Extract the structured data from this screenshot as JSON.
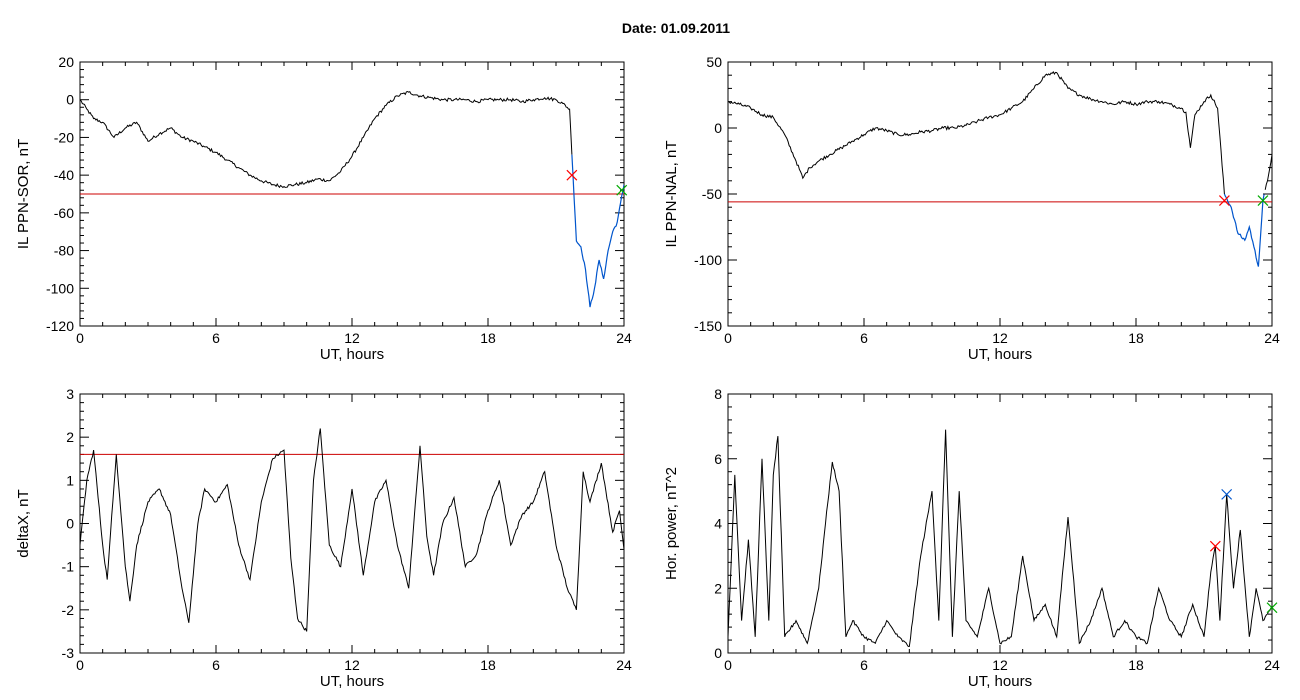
{
  "date_label": "Date:  01.09.2011",
  "chart_data": [
    {
      "type": "line",
      "xlabel": "UT, hours",
      "ylabel": "IL PPN-SOR, nT",
      "xlim": [
        0,
        24
      ],
      "ylim": [
        -120,
        20
      ],
      "xticks": [
        0,
        6,
        12,
        18,
        24
      ],
      "yticks": [
        -120,
        -100,
        -80,
        -60,
        -40,
        -20,
        0,
        20
      ],
      "threshold": -50,
      "colors": {
        "line": "#000000",
        "highlight": "#0055cc",
        "threshold": "#cc0000",
        "start_marker": "#ff0000",
        "end_marker": "#00aa00"
      },
      "highlight_range": [
        21.7,
        24
      ],
      "markers": [
        {
          "x": 21.7,
          "y": -40,
          "color": "red"
        },
        {
          "x": 23.9,
          "y": -48,
          "color": "green"
        }
      ],
      "series": [
        {
          "x": [
            0,
            0.3,
            0.6,
            1.0,
            1.5,
            2.0,
            2.5,
            3.0,
            3.5,
            4.0,
            4.5,
            5.0,
            5.5,
            6.0,
            6.5,
            7.0,
            7.5,
            8.0,
            8.5,
            9.0,
            9.5,
            10.0,
            10.5,
            11.0,
            11.5,
            12.0,
            12.5,
            13.0,
            13.5,
            14.0,
            14.5,
            15.0,
            15.5,
            16.0,
            16.5,
            17.0,
            17.5,
            18.0,
            18.5,
            19.0,
            19.5,
            20.0,
            20.5,
            21.0,
            21.3,
            21.6,
            21.75,
            21.9,
            22.1,
            22.3,
            22.5,
            22.7,
            22.9,
            23.1,
            23.3,
            23.5,
            23.7,
            24.0
          ],
          "y": [
            0,
            -5,
            -10,
            -12,
            -20,
            -15,
            -12,
            -22,
            -18,
            -15,
            -20,
            -22,
            -25,
            -28,
            -32,
            -36,
            -40,
            -43,
            -45,
            -46,
            -45,
            -44,
            -42,
            -43,
            -38,
            -30,
            -20,
            -10,
            -3,
            2,
            4,
            2,
            1,
            0,
            0,
            0,
            -1,
            0,
            0,
            0,
            -1,
            0,
            1,
            0,
            -2,
            -5,
            -40,
            -75,
            -78,
            -90,
            -110,
            -100,
            -85,
            -95,
            -80,
            -70,
            -65,
            -45
          ]
        }
      ]
    },
    {
      "type": "line",
      "xlabel": "UT, hours",
      "ylabel": "IL PPN-NAL, nT",
      "xlim": [
        0,
        24
      ],
      "ylim": [
        -150,
        50
      ],
      "xticks": [
        0,
        6,
        12,
        18,
        24
      ],
      "yticks": [
        -150,
        -100,
        -50,
        0,
        50
      ],
      "threshold": -56,
      "colors": {
        "line": "#000000",
        "highlight": "#0055cc",
        "threshold": "#cc0000",
        "start_marker": "#ff0000",
        "end_marker": "#00aa00"
      },
      "highlight_range": [
        21.9,
        23.7
      ],
      "markers": [
        {
          "x": 21.9,
          "y": -55,
          "color": "red"
        },
        {
          "x": 23.6,
          "y": -55,
          "color": "green"
        }
      ],
      "series": [
        {
          "x": [
            0,
            0.5,
            1.0,
            1.5,
            2.0,
            2.5,
            3.0,
            3.3,
            3.6,
            4.0,
            4.5,
            5.0,
            5.5,
            6.0,
            6.5,
            7.0,
            7.5,
            8.0,
            8.5,
            9.0,
            9.5,
            10.0,
            10.5,
            11.0,
            11.5,
            12.0,
            12.5,
            13.0,
            13.5,
            14.0,
            14.5,
            15.0,
            15.5,
            16.0,
            16.5,
            17.0,
            17.5,
            18.0,
            18.5,
            19.0,
            19.5,
            20.0,
            20.2,
            20.4,
            20.6,
            21.0,
            21.3,
            21.6,
            21.9,
            22.2,
            22.5,
            22.8,
            23.0,
            23.2,
            23.4,
            23.6,
            23.8,
            24.0
          ],
          "y": [
            20,
            18,
            15,
            10,
            8,
            -5,
            -25,
            -38,
            -30,
            -25,
            -20,
            -15,
            -10,
            -5,
            0,
            -2,
            -5,
            -5,
            -3,
            -2,
            0,
            0,
            2,
            5,
            8,
            10,
            15,
            20,
            30,
            40,
            42,
            30,
            25,
            22,
            20,
            18,
            20,
            18,
            20,
            20,
            18,
            15,
            12,
            -15,
            10,
            20,
            25,
            15,
            -50,
            -60,
            -80,
            -85,
            -75,
            -90,
            -105,
            -55,
            -40,
            -20
          ]
        }
      ]
    },
    {
      "type": "line",
      "xlabel": "UT, hours",
      "ylabel": "deltaX, nT",
      "xlim": [
        0,
        24
      ],
      "ylim": [
        -3,
        3
      ],
      "xticks": [
        0,
        6,
        12,
        18,
        24
      ],
      "yticks": [
        -3,
        -2,
        -1,
        0,
        1,
        2,
        3
      ],
      "threshold": 1.6,
      "colors": {
        "line": "#000000",
        "threshold": "#cc0000"
      },
      "series": [
        {
          "x": [
            0,
            0.3,
            0.6,
            1.0,
            1.2,
            1.6,
            2.0,
            2.2,
            2.5,
            3.0,
            3.5,
            4.0,
            4.5,
            4.8,
            5.2,
            5.5,
            6.0,
            6.5,
            7.0,
            7.5,
            8.0,
            8.5,
            9.0,
            9.3,
            9.6,
            10.0,
            10.3,
            10.6,
            11.0,
            11.5,
            12.0,
            12.5,
            13.0,
            13.5,
            14.0,
            14.5,
            15.0,
            15.3,
            15.6,
            16.0,
            16.5,
            17.0,
            17.5,
            18.0,
            18.5,
            19.0,
            19.5,
            20.0,
            20.5,
            21.0,
            21.5,
            21.9,
            22.2,
            22.5,
            23.0,
            23.5,
            23.8,
            24.0
          ],
          "y": [
            -0.5,
            1.0,
            1.7,
            -0.5,
            -1.3,
            1.6,
            -1.0,
            -1.8,
            -0.5,
            0.5,
            0.8,
            0.2,
            -1.5,
            -2.3,
            0.0,
            0.8,
            0.5,
            0.9,
            -0.5,
            -1.3,
            0.5,
            1.5,
            1.7,
            -0.8,
            -2.2,
            -2.5,
            1.0,
            2.2,
            -0.5,
            -1.0,
            0.8,
            -1.2,
            0.5,
            1.0,
            -0.5,
            -1.5,
            1.8,
            -0.3,
            -1.2,
            0.0,
            0.6,
            -1.0,
            -0.7,
            0.3,
            1.0,
            -0.5,
            0.2,
            0.5,
            1.2,
            -0.5,
            -1.5,
            -2.0,
            1.2,
            0.5,
            1.4,
            -0.2,
            0.3,
            -0.6
          ]
        }
      ]
    },
    {
      "type": "line",
      "xlabel": "UT, hours",
      "ylabel": "Hor. power, nT^2",
      "xlim": [
        0,
        24
      ],
      "ylim": [
        0,
        8
      ],
      "xticks": [
        0,
        6,
        12,
        18,
        24
      ],
      "yticks": [
        0,
        2,
        4,
        6,
        8
      ],
      "colors": {
        "line": "#000000",
        "start_marker": "#ff0000",
        "end_marker": "#00aa00",
        "peak_marker": "#0055cc"
      },
      "markers": [
        {
          "x": 21.5,
          "y": 3.3,
          "color": "red"
        },
        {
          "x": 22.0,
          "y": 4.9,
          "color": "blue"
        },
        {
          "x": 24.0,
          "y": 1.4,
          "color": "green"
        }
      ],
      "series": [
        {
          "x": [
            0,
            0.3,
            0.6,
            0.9,
            1.2,
            1.5,
            1.8,
            2.0,
            2.2,
            2.5,
            3.0,
            3.5,
            4.0,
            4.3,
            4.6,
            4.9,
            5.2,
            5.5,
            6.0,
            6.5,
            7.0,
            7.5,
            8.0,
            8.5,
            9.0,
            9.3,
            9.6,
            9.9,
            10.2,
            10.5,
            11.0,
            11.5,
            12.0,
            12.5,
            13.0,
            13.5,
            14.0,
            14.5,
            15.0,
            15.5,
            16.0,
            16.5,
            17.0,
            17.5,
            18.0,
            18.5,
            19.0,
            19.5,
            20.0,
            20.5,
            21.0,
            21.3,
            21.5,
            21.7,
            22.0,
            22.3,
            22.6,
            23.0,
            23.3,
            23.6,
            24.0
          ],
          "y": [
            0.5,
            5.5,
            1.0,
            3.5,
            0.5,
            6.0,
            1.0,
            5.5,
            6.7,
            0.5,
            1.0,
            0.3,
            2.0,
            4.0,
            5.9,
            5.0,
            0.5,
            1.0,
            0.5,
            0.3,
            1.0,
            0.5,
            0.2,
            3.0,
            5.0,
            1.0,
            6.9,
            0.5,
            5.0,
            1.0,
            0.5,
            2.0,
            0.3,
            0.5,
            3.0,
            1.0,
            1.5,
            0.5,
            4.2,
            0.3,
            1.0,
            2.0,
            0.5,
            1.0,
            0.5,
            0.3,
            2.0,
            1.0,
            0.5,
            1.5,
            0.5,
            2.5,
            3.3,
            1.0,
            4.9,
            2.0,
            3.8,
            0.5,
            2.0,
            1.0,
            1.4
          ]
        }
      ]
    }
  ]
}
